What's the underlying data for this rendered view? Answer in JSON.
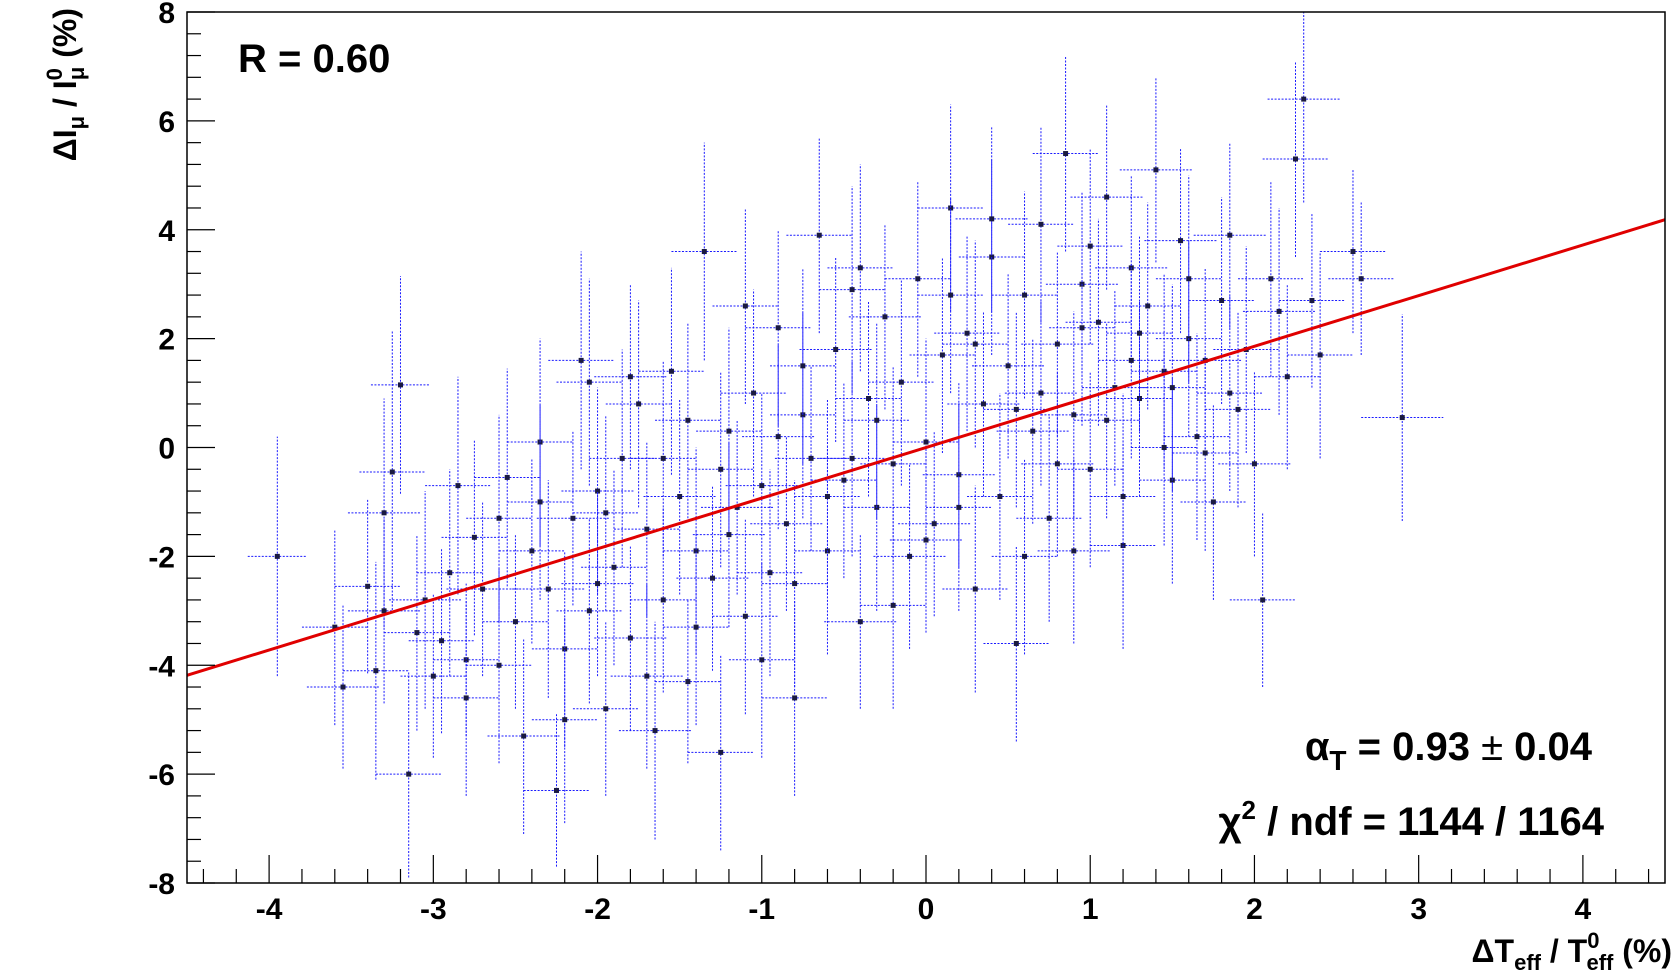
{
  "chart_data": {
    "type": "scatter",
    "xlabel": {
      "main": "ΔT",
      "sub": "eff",
      "sep": " / T",
      "sup2": "0",
      "sub2": "eff",
      "tail": " (%)"
    },
    "ylabel": {
      "main": "ΔI",
      "sub": "μ",
      "sep": " / I",
      "sup2": "0",
      "sub2": "μ",
      "tail": " (%)"
    },
    "xlim": [
      -4.5,
      4.5
    ],
    "ylim": [
      -8,
      8
    ],
    "xticks": [
      -4,
      -3,
      -2,
      -1,
      0,
      1,
      2,
      3,
      4
    ],
    "yticks": [
      -8,
      -6,
      -4,
      -2,
      0,
      2,
      4,
      6,
      8
    ],
    "grid": false,
    "fit_line": {
      "slope": 0.93,
      "intercept": 0.0,
      "color": "#e00000"
    },
    "annotations": {
      "correlation": "R = 0.60",
      "alpha_symbol": "α",
      "alpha_sub": "T",
      "alpha_value": " = 0.93",
      "pm": " ± ",
      "alpha_err": "0.04",
      "chi_symbol": "χ",
      "chi_sup": "2",
      "chi_rest": " / ndf = 1144 / 1164"
    },
    "series_style": {
      "marker_color": "#1a1a40",
      "error_bar_color": "#1a1aff"
    },
    "points": [
      [
        -3.95,
        -2.0,
        0.18,
        2.2
      ],
      [
        -3.6,
        -3.3,
        0.2,
        1.8
      ],
      [
        -3.55,
        -4.4,
        0.22,
        1.5
      ],
      [
        -3.4,
        -2.55,
        0.2,
        1.6
      ],
      [
        -3.35,
        -4.1,
        0.2,
        2.0
      ],
      [
        -3.3,
        -1.2,
        0.22,
        2.1
      ],
      [
        -3.25,
        -0.45,
        0.2,
        2.6
      ],
      [
        -3.2,
        1.15,
        0.18,
        2.0
      ],
      [
        -3.15,
        -6.0,
        0.2,
        1.9
      ],
      [
        -3.1,
        -3.4,
        0.2,
        1.8
      ],
      [
        -3.05,
        -2.8,
        0.22,
        2.0
      ],
      [
        -3.0,
        -4.2,
        0.2,
        1.5
      ],
      [
        -2.95,
        -3.55,
        0.2,
        1.7
      ],
      [
        -2.9,
        -2.3,
        0.2,
        1.9
      ],
      [
        -2.85,
        -0.7,
        0.2,
        2.0
      ],
      [
        -2.8,
        -3.9,
        0.2,
        1.4
      ],
      [
        -2.75,
        -1.65,
        0.2,
        1.8
      ],
      [
        -2.7,
        -2.6,
        0.22,
        1.6
      ],
      [
        -2.6,
        -4.0,
        0.2,
        1.8
      ],
      [
        -2.55,
        -0.55,
        0.2,
        2.0
      ],
      [
        -2.5,
        -3.2,
        0.2,
        1.6
      ],
      [
        -2.45,
        -5.3,
        0.22,
        1.8
      ],
      [
        -2.4,
        -1.9,
        0.2,
        1.7
      ],
      [
        -2.35,
        0.1,
        0.2,
        1.9
      ],
      [
        -2.3,
        -2.6,
        0.22,
        2.0
      ],
      [
        -2.25,
        -6.3,
        0.2,
        1.4
      ],
      [
        -2.2,
        -3.7,
        0.2,
        1.8
      ],
      [
        -2.15,
        -1.3,
        0.22,
        1.6
      ],
      [
        -2.1,
        1.6,
        0.2,
        2.0
      ],
      [
        -2.05,
        -3.0,
        0.2,
        1.7
      ],
      [
        -2.0,
        -0.8,
        0.22,
        1.9
      ],
      [
        -1.95,
        -4.8,
        0.2,
        1.6
      ],
      [
        -1.9,
        -2.2,
        0.2,
        1.8
      ],
      [
        -1.85,
        -0.2,
        0.2,
        2.0
      ],
      [
        -1.8,
        -3.5,
        0.22,
        1.7
      ],
      [
        -1.75,
        0.8,
        0.2,
        1.9
      ],
      [
        -1.7,
        -1.5,
        0.2,
        1.6
      ],
      [
        -1.65,
        -5.2,
        0.22,
        2.0
      ],
      [
        -1.6,
        -2.8,
        0.2,
        1.7
      ],
      [
        -1.55,
        1.4,
        0.2,
        1.9
      ],
      [
        -1.5,
        -0.9,
        0.22,
        1.8
      ],
      [
        -1.45,
        -4.3,
        0.2,
        1.5
      ],
      [
        -1.4,
        -1.9,
        0.2,
        1.9
      ],
      [
        -1.35,
        3.6,
        0.2,
        2.0
      ],
      [
        -1.3,
        -2.4,
        0.22,
        1.7
      ],
      [
        -1.25,
        -5.6,
        0.2,
        1.8
      ],
      [
        -1.2,
        0.3,
        0.2,
        1.9
      ],
      [
        -1.15,
        -1.1,
        0.22,
        1.6
      ],
      [
        -1.1,
        -3.1,
        0.2,
        1.8
      ],
      [
        -1.05,
        1.0,
        0.2,
        1.9
      ],
      [
        -1.0,
        -0.7,
        0.22,
        1.7
      ],
      [
        -0.95,
        -2.3,
        0.2,
        1.9
      ],
      [
        -0.9,
        2.2,
        0.2,
        1.8
      ],
      [
        -0.85,
        -1.4,
        0.22,
        1.6
      ],
      [
        -0.8,
        -4.6,
        0.2,
        1.8
      ],
      [
        -0.75,
        0.6,
        0.2,
        1.9
      ],
      [
        -0.7,
        -0.2,
        0.22,
        1.7
      ],
      [
        -0.65,
        3.9,
        0.2,
        1.8
      ],
      [
        -0.6,
        -1.9,
        0.2,
        1.9
      ],
      [
        -0.55,
        1.8,
        0.22,
        1.7
      ],
      [
        -0.5,
        -0.6,
        0.2,
        1.8
      ],
      [
        -0.45,
        2.9,
        0.2,
        1.9
      ],
      [
        -0.4,
        -3.2,
        0.22,
        1.6
      ],
      [
        -0.35,
        0.9,
        0.2,
        1.8
      ],
      [
        -0.3,
        -1.1,
        0.2,
        1.9
      ],
      [
        -0.25,
        2.4,
        0.22,
        1.7
      ],
      [
        -0.2,
        -0.3,
        0.2,
        1.8
      ],
      [
        -0.15,
        1.2,
        0.2,
        1.9
      ],
      [
        -0.1,
        -2.0,
        0.22,
        1.7
      ],
      [
        -0.05,
        3.1,
        0.2,
        1.8
      ],
      [
        0.0,
        0.1,
        0.2,
        1.9
      ],
      [
        0.05,
        -1.4,
        0.22,
        1.7
      ],
      [
        0.1,
        1.7,
        0.2,
        1.8
      ],
      [
        0.15,
        4.4,
        0.2,
        1.9
      ],
      [
        0.2,
        -0.5,
        0.22,
        1.7
      ],
      [
        0.25,
        2.1,
        0.2,
        1.8
      ],
      [
        0.3,
        -2.6,
        0.2,
        1.9
      ],
      [
        0.35,
        0.8,
        0.22,
        1.7
      ],
      [
        0.4,
        3.5,
        0.2,
        1.8
      ],
      [
        0.45,
        -0.9,
        0.2,
        1.9
      ],
      [
        0.5,
        1.5,
        0.22,
        1.7
      ],
      [
        0.55,
        -3.6,
        0.2,
        1.8
      ],
      [
        0.6,
        2.8,
        0.2,
        1.9
      ],
      [
        0.65,
        0.3,
        0.22,
        1.7
      ],
      [
        0.7,
        4.1,
        0.2,
        1.8
      ],
      [
        0.75,
        -1.3,
        0.2,
        1.9
      ],
      [
        0.8,
        1.9,
        0.22,
        1.7
      ],
      [
        0.85,
        5.4,
        0.2,
        1.8
      ],
      [
        0.9,
        0.6,
        0.2,
        1.9
      ],
      [
        0.95,
        3.0,
        0.22,
        1.7
      ],
      [
        1.0,
        -0.4,
        0.2,
        1.8
      ],
      [
        1.05,
        2.3,
        0.2,
        1.9
      ],
      [
        1.1,
        4.6,
        0.22,
        1.7
      ],
      [
        1.15,
        1.1,
        0.2,
        1.8
      ],
      [
        1.2,
        -1.8,
        0.2,
        1.9
      ],
      [
        1.25,
        3.3,
        0.22,
        1.7
      ],
      [
        1.3,
        0.9,
        0.2,
        1.8
      ],
      [
        1.35,
        2.6,
        0.2,
        1.9
      ],
      [
        1.4,
        5.1,
        0.22,
        1.7
      ],
      [
        1.45,
        1.4,
        0.2,
        1.8
      ],
      [
        1.5,
        -0.6,
        0.2,
        1.9
      ],
      [
        1.55,
        3.8,
        0.22,
        1.7
      ],
      [
        1.6,
        2.0,
        0.2,
        1.8
      ],
      [
        1.65,
        0.2,
        0.2,
        1.9
      ],
      [
        1.7,
        1.6,
        0.22,
        1.7
      ],
      [
        1.75,
        -1.0,
        0.2,
        1.8
      ],
      [
        1.8,
        2.7,
        0.2,
        1.9
      ],
      [
        1.85,
        3.9,
        0.22,
        1.7
      ],
      [
        1.9,
        0.7,
        0.2,
        1.8
      ],
      [
        1.95,
        1.8,
        0.2,
        1.9
      ],
      [
        2.0,
        -0.3,
        0.22,
        1.7
      ],
      [
        2.05,
        -2.8,
        0.2,
        1.6
      ],
      [
        2.1,
        3.1,
        0.2,
        1.8
      ],
      [
        2.15,
        2.5,
        0.22,
        1.9
      ],
      [
        2.2,
        1.3,
        0.2,
        1.7
      ],
      [
        2.25,
        5.3,
        0.2,
        1.8
      ],
      [
        2.3,
        6.4,
        0.22,
        1.9
      ],
      [
        2.35,
        2.7,
        0.2,
        1.6
      ],
      [
        2.6,
        3.6,
        0.2,
        1.5
      ],
      [
        2.65,
        3.1,
        0.2,
        1.4
      ],
      [
        2.9,
        0.55,
        0.25,
        1.9
      ],
      [
        -2.05,
        1.2,
        0.2,
        1.9
      ],
      [
        -1.6,
        -0.2,
        0.2,
        1.8
      ],
      [
        -0.9,
        0.2,
        0.22,
        1.7
      ],
      [
        -0.3,
        0.5,
        0.2,
        1.8
      ],
      [
        0.3,
        1.9,
        0.2,
        1.9
      ],
      [
        0.7,
        1.0,
        0.22,
        1.7
      ],
      [
        1.1,
        0.5,
        0.2,
        1.8
      ],
      [
        1.5,
        1.1,
        0.2,
        1.9
      ],
      [
        -1.2,
        -1.6,
        0.22,
        1.7
      ],
      [
        -0.6,
        -0.9,
        0.2,
        1.8
      ],
      [
        0.2,
        -1.1,
        0.2,
        1.9
      ],
      [
        0.8,
        -0.3,
        0.22,
        1.7
      ],
      [
        1.3,
        2.1,
        0.2,
        1.8
      ],
      [
        -2.6,
        -1.3,
        0.2,
        1.9
      ],
      [
        -2.0,
        -2.5,
        0.22,
        1.7
      ],
      [
        -1.4,
        -3.3,
        0.2,
        1.8
      ],
      [
        -0.8,
        -2.5,
        0.2,
        1.9
      ],
      [
        0.0,
        -1.7,
        0.22,
        1.7
      ],
      [
        0.6,
        -2.0,
        0.2,
        1.8
      ],
      [
        1.2,
        -0.9,
        0.2,
        1.9
      ],
      [
        -1.8,
        1.3,
        0.22,
        1.7
      ],
      [
        -1.1,
        2.6,
        0.2,
        1.8
      ],
      [
        -0.4,
        3.3,
        0.2,
        1.9
      ],
      [
        0.4,
        4.2,
        0.22,
        1.7
      ],
      [
        1.0,
        3.7,
        0.2,
        1.8
      ],
      [
        1.6,
        3.1,
        0.2,
        1.9
      ],
      [
        -3.3,
        -3.0,
        0.22,
        1.7
      ],
      [
        -2.8,
        -4.6,
        0.2,
        1.8
      ],
      [
        -2.2,
        -5.0,
        0.2,
        1.9
      ],
      [
        -1.7,
        -4.2,
        0.22,
        1.7
      ],
      [
        -1.0,
        -3.9,
        0.2,
        1.8
      ],
      [
        -0.2,
        -2.9,
        0.2,
        1.9
      ],
      [
        0.9,
        -1.9,
        0.22,
        1.7
      ],
      [
        1.7,
        -0.1,
        0.2,
        1.8
      ],
      [
        2.4,
        1.7,
        0.2,
        1.9
      ],
      [
        -1.45,
        0.5,
        0.2,
        1.8
      ],
      [
        -0.75,
        1.5,
        0.2,
        1.8
      ],
      [
        0.15,
        2.8,
        0.2,
        1.8
      ],
      [
        0.95,
        2.2,
        0.2,
        1.8
      ],
      [
        1.45,
        0.0,
        0.2,
        1.8
      ],
      [
        -1.95,
        -1.2,
        0.2,
        1.8
      ],
      [
        -1.25,
        -0.4,
        0.2,
        1.8
      ],
      [
        -0.45,
        -0.2,
        0.2,
        1.8
      ],
      [
        0.55,
        0.7,
        0.2,
        1.8
      ],
      [
        1.25,
        1.6,
        0.2,
        1.8
      ],
      [
        1.85,
        1.0,
        0.2,
        1.8
      ],
      [
        -2.35,
        -1.0,
        0.2,
        1.8
      ]
    ]
  }
}
